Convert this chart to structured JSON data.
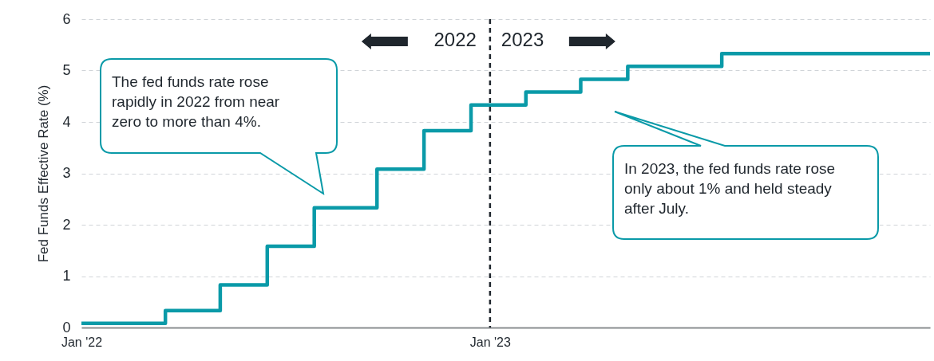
{
  "chart_data": {
    "type": "step",
    "ylabel": "Fed Funds Effective Rate (%)",
    "x": [
      "2022-01-01",
      "2022-03-17",
      "2022-05-05",
      "2022-06-16",
      "2022-07-28",
      "2022-09-22",
      "2022-11-03",
      "2022-12-15",
      "2023-02-02",
      "2023-03-23",
      "2023-05-04",
      "2023-07-27",
      "2024-01-29"
    ],
    "series": [
      {
        "color": "#0a9aa8",
        "values": [
          0.08,
          0.33,
          0.83,
          1.58,
          2.33,
          3.08,
          3.83,
          4.33,
          4.58,
          4.83,
          5.08,
          5.33,
          5.33
        ]
      }
    ],
    "xlim": [
      "2022-01-01",
      "2024-01-29"
    ],
    "xticks": [
      {
        "value": "2022-01-01",
        "label": "Jan '22"
      },
      {
        "value": "2023-01-01",
        "label": "Jan '23"
      }
    ],
    "ylim": [
      0,
      6
    ],
    "yticks": [
      0,
      1,
      2,
      3,
      4,
      5,
      6
    ],
    "grid": "y",
    "legend": false,
    "marker": "none",
    "line_style": "solid",
    "ref_lines": [
      {
        "axis": "x",
        "value": "2023-01-01",
        "color": "#1f262d",
        "line_style": "dashed"
      }
    ],
    "annotations": [
      "2022",
      "2023",
      "The fed funds rate rose rapidly in 2022 from near zero to more than 4%.",
      "In 2023, the fed funds rate rose only about 1% and held steady after July."
    ]
  }
}
